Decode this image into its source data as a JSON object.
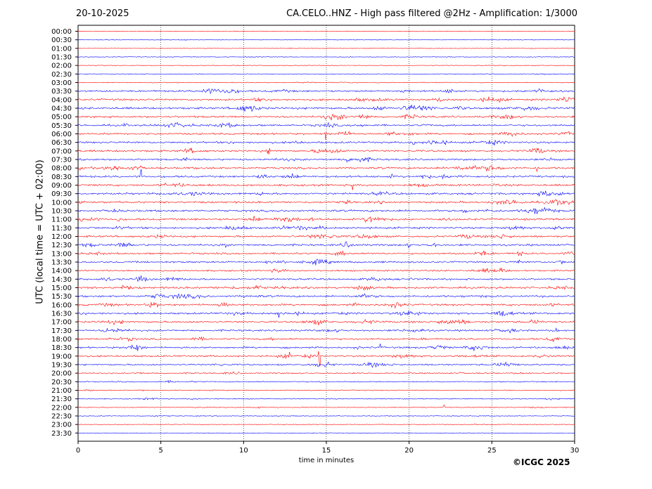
{
  "header": {
    "date": "20-10-2025",
    "title": "CA.CELO..HNZ - High pass filtered @2Hz - Amplification: 1/3000"
  },
  "copyright": "©ICGC 2025",
  "chart_data": {
    "type": "line",
    "title": "CA.CELO..HNZ - High pass filtered @2Hz - Amplification: 1/3000",
    "xlabel": "time in minutes",
    "ylabel": "UTC (local time = UTC + 02:00)",
    "xlim": [
      0,
      30
    ],
    "x_ticks": [
      "0",
      "5",
      "10",
      "15",
      "20",
      "25",
      "30"
    ],
    "y_ticks": [
      "00:00",
      "00:30",
      "01:00",
      "01:30",
      "02:00",
      "02:30",
      "03:00",
      "03:30",
      "04:00",
      "04:30",
      "05:00",
      "05:30",
      "06:00",
      "06:30",
      "07:00",
      "07:30",
      "08:00",
      "08:30",
      "09:00",
      "09:30",
      "10:00",
      "10:30",
      "11:00",
      "11:30",
      "12:00",
      "12:30",
      "13:00",
      "13:30",
      "14:00",
      "14:30",
      "15:00",
      "15:30",
      "16:00",
      "16:30",
      "17:00",
      "17:30",
      "18:00",
      "18:30",
      "19:00",
      "19:30",
      "20:00",
      "20:30",
      "21:00",
      "21:30",
      "22:00",
      "22:30",
      "23:00",
      "23:30"
    ],
    "trace_colors": [
      "#ff0000",
      "#0000ff"
    ],
    "activity": [
      0.1,
      0.1,
      0.1,
      0.15,
      0.15,
      0.2,
      0.25,
      0.8,
      0.9,
      1.0,
      0.9,
      0.8,
      0.8,
      0.85,
      0.9,
      0.85,
      0.9,
      0.9,
      0.9,
      0.9,
      0.9,
      0.95,
      0.95,
      0.9,
      0.9,
      0.9,
      0.8,
      0.75,
      0.7,
      0.75,
      0.9,
      0.9,
      0.9,
      0.9,
      0.9,
      0.8,
      0.8,
      0.8,
      0.8,
      0.7,
      0.5,
      0.4,
      0.3,
      0.3,
      0.25,
      0.2,
      0.15,
      0.1
    ],
    "grid": true
  }
}
